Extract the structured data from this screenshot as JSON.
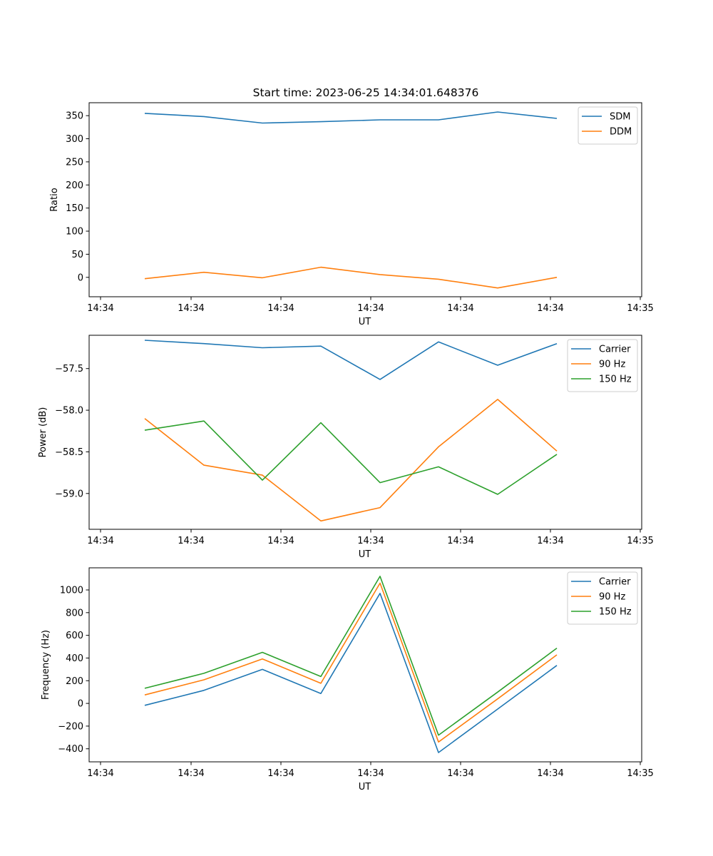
{
  "figure": {
    "title": "Start time: 2023-06-25 14:34:01.648376"
  },
  "chart_data": [
    {
      "type": "line",
      "title": "Start time: 2023-06-25 14:34:01.648376",
      "xlabel": "UT",
      "ylabel": "Ratio",
      "x_tick_labels": [
        "14:34",
        "14:34",
        "14:34",
        "14:34",
        "14:34",
        "14:34",
        "14:35"
      ],
      "y_ticks": [
        0,
        50,
        100,
        150,
        200,
        250,
        300,
        350
      ],
      "y_tick_labels": [
        "0",
        "50",
        "100",
        "150",
        "200",
        "250",
        "300",
        "350"
      ],
      "ylim": [
        -42,
        378
      ],
      "grid": false,
      "legend_position": "top-right",
      "series": [
        {
          "name": "SDM",
          "color": "#1f77b4",
          "values": [
            355,
            348,
            334,
            337,
            341,
            341,
            358,
            344
          ]
        },
        {
          "name": "DDM",
          "color": "#ff7f0e",
          "values": [
            -3,
            11,
            -1,
            22,
            6,
            -4,
            -23,
            0
          ]
        }
      ]
    },
    {
      "type": "line",
      "title": "",
      "xlabel": "UT",
      "ylabel": "Power (dB)",
      "x_tick_labels": [
        "14:34",
        "14:34",
        "14:34",
        "14:34",
        "14:34",
        "14:34",
        "14:35"
      ],
      "y_ticks": [
        -57.5,
        -58.0,
        -58.5,
        -59.0
      ],
      "y_tick_labels": [
        "−57.5",
        "−58.0",
        "−58.5",
        "−59.0"
      ],
      "ylim": [
        -59.43,
        -57.1
      ],
      "grid": false,
      "legend_position": "top-right",
      "series": [
        {
          "name": "Carrier",
          "color": "#1f77b4",
          "values": [
            -57.16,
            -57.2,
            -57.25,
            -57.23,
            -57.63,
            -57.18,
            -57.46,
            -57.2
          ]
        },
        {
          "name": "90 Hz",
          "color": "#ff7f0e",
          "values": [
            -58.1,
            -58.66,
            -58.78,
            -59.33,
            -59.17,
            -58.44,
            -57.87,
            -58.49
          ]
        },
        {
          "name": "150 Hz",
          "color": "#2ca02c",
          "values": [
            -58.24,
            -58.13,
            -58.84,
            -58.15,
            -58.87,
            -58.68,
            -59.01,
            -58.53
          ]
        }
      ]
    },
    {
      "type": "line",
      "title": "",
      "xlabel": "UT",
      "ylabel": "Frequency (Hz)",
      "x_tick_labels": [
        "14:34",
        "14:34",
        "14:34",
        "14:34",
        "14:34",
        "14:34",
        "14:35"
      ],
      "y_ticks": [
        -400,
        -200,
        0,
        200,
        400,
        600,
        800,
        1000
      ],
      "y_tick_labels": [
        "−400",
        "−200",
        "0",
        "200",
        "400",
        "600",
        "800",
        "1000"
      ],
      "ylim": [
        -515,
        1195
      ],
      "grid": false,
      "legend_position": "top-right",
      "series": [
        {
          "name": "Carrier",
          "color": "#1f77b4",
          "values": [
            -17,
            115,
            300,
            87,
            970,
            -433,
            -50,
            335
          ]
        },
        {
          "name": "90 Hz",
          "color": "#ff7f0e",
          "values": [
            75,
            208,
            392,
            177,
            1060,
            -340,
            40,
            428
          ]
        },
        {
          "name": "150 Hz",
          "color": "#2ca02c",
          "values": [
            133,
            265,
            450,
            237,
            1120,
            -280,
            100,
            487
          ]
        }
      ]
    }
  ]
}
